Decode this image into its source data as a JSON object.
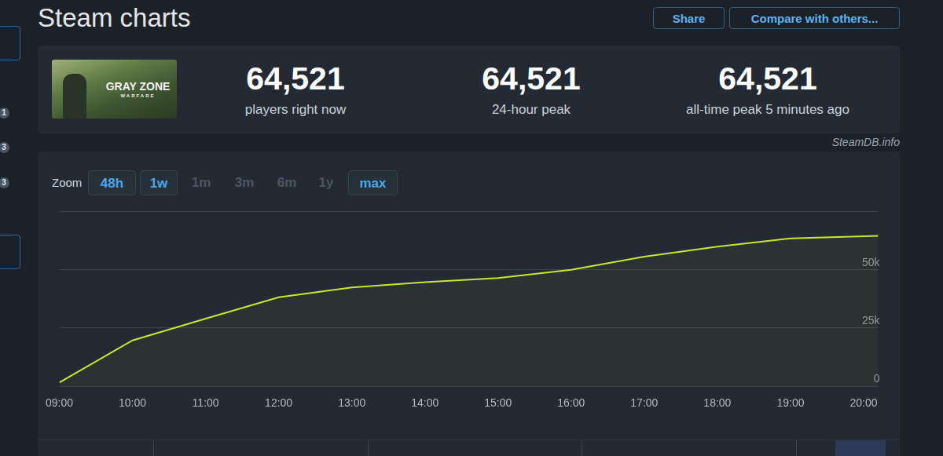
{
  "page": {
    "heading": "Steam charts",
    "buttons": [
      "Share",
      "Compare with others..."
    ],
    "sidebar_badges": [
      "1",
      "3",
      "3"
    ],
    "game_logo": [
      "GRAY ZONE",
      "WARFARE"
    ],
    "stats": [
      {
        "value": "64,521",
        "label": "players right now"
      },
      {
        "value": "64,521",
        "label": "24-hour peak"
      },
      {
        "value": "64,521",
        "label": "all-time peak 5 minutes ago"
      }
    ],
    "source": "SteamDB.info",
    "zoom": {
      "label": "Zoom",
      "options": [
        {
          "text": "48h",
          "active": true
        },
        {
          "text": "1w",
          "active": true
        },
        {
          "text": "1m",
          "active": false
        },
        {
          "text": "3m",
          "active": false
        },
        {
          "text": "6m",
          "active": false
        },
        {
          "text": "1y",
          "active": false
        },
        {
          "text": "max",
          "active": true
        }
      ]
    }
  },
  "chart_data": {
    "type": "line",
    "x": [
      9,
      10,
      11,
      12,
      13,
      14,
      15,
      16,
      17,
      18,
      19,
      20.2
    ],
    "values": [
      1600,
      19700,
      29000,
      38200,
      42400,
      44700,
      46400,
      50000,
      55600,
      59900,
      63400,
      64521
    ],
    "color": "#c8e62f",
    "xlim": [
      9,
      20.2
    ],
    "xticks": [
      {
        "value": 9,
        "label": "09:00"
      },
      {
        "value": 10,
        "label": "10:00"
      },
      {
        "value": 11,
        "label": "11:00"
      },
      {
        "value": 12,
        "label": "12:00"
      },
      {
        "value": 13,
        "label": "13:00"
      },
      {
        "value": 14,
        "label": "14:00"
      },
      {
        "value": 15,
        "label": "15:00"
      },
      {
        "value": 16,
        "label": "16:00"
      },
      {
        "value": 17,
        "label": "17:00"
      },
      {
        "value": 18,
        "label": "18:00"
      },
      {
        "value": 19,
        "label": "19:00"
      },
      {
        "value": 20,
        "label": "20:00"
      }
    ],
    "ylim": [
      0,
      75000
    ],
    "yticks": [
      0,
      {
        "value": 25000,
        "label": "25k"
      },
      {
        "value": 50000,
        "label": "50k"
      }
    ],
    "grid": true
  }
}
